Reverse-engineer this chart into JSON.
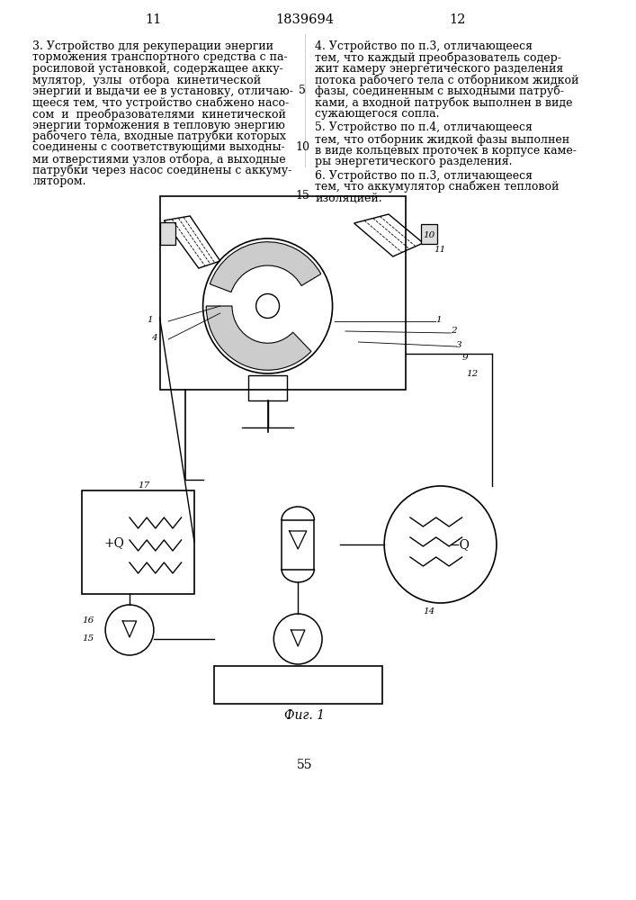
{
  "page_number_left": "11",
  "patent_number": "1839694",
  "page_number_right": "12",
  "bottom_page_number": "55",
  "figure_caption": "Фиг. 1",
  "text_left_col": "3. Устройство для рекуперации энергии торможения транспортного средства с паросиловой установкой, содержащее аккумулятор, узлы отбора кинетической энергии и выдачи ее в установку, отличающееся тем, что устройство снабжено насосом и преобразователями кинетической энергии торможения в тепловую энергию рабочего тела, входные патрубки которых соединены с соответствующими выходными отверстиями узлов отбора, а выходные патрубки через насос соединены с аккумулятором.",
  "text_right_col_items": [
    "4. Устройство по п.3, отличающееся тем, что каждый преобразователь содержит камеру энергетического разделения потока рабочего тела с отборником жидкой фазы, соединенным с выходными патрубками, а входной патрубок выполнен в виде сужающегося сопла.",
    "5. Устройство по п.4, отличающееся тем, что отборник жидкой фазы выполнен в виде кольцевых проточек в корпусе камеры энергетического разделения.",
    "6. Устройство по п.3, отличающееся тем, что аккумулятор снабжен тепловой изоляцией."
  ],
  "line_numbers_left": [
    "5",
    "10"
  ],
  "line_number_15": "15",
  "bg_color": "#ffffff",
  "text_color": "#000000",
  "font_size_body": 9.5,
  "font_size_header": 10
}
